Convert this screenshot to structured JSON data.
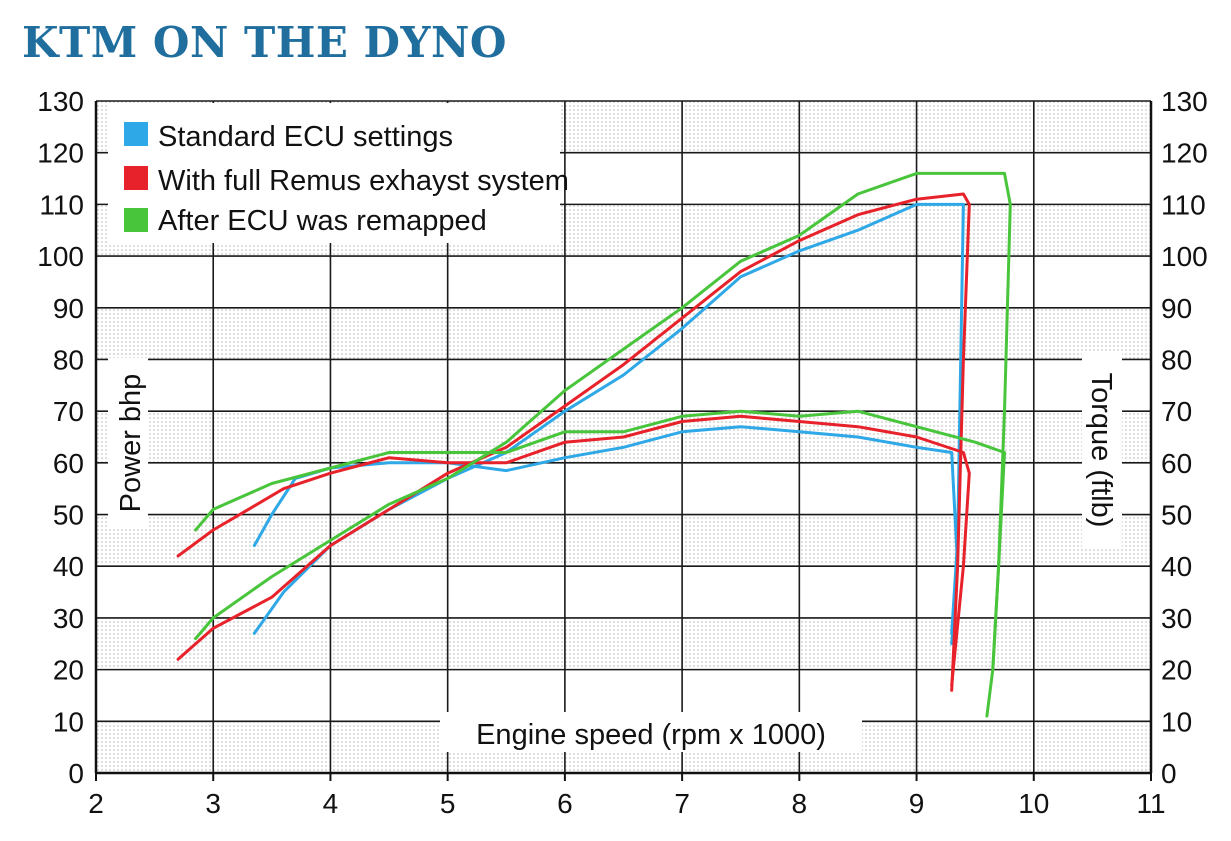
{
  "chart_data": {
    "type": "line",
    "title": "KTM ON THE DYNO",
    "xlabel": "Engine speed (rpm x 1000)",
    "ylabel": "Power bhp",
    "y2label": "Torque (ftlb)",
    "xlim": [
      2,
      11
    ],
    "ylim": [
      0,
      130
    ],
    "y2lim": [
      0,
      130
    ],
    "x_ticks": [
      2,
      3,
      4,
      5,
      6,
      7,
      8,
      9,
      10,
      11
    ],
    "y_ticks": [
      0,
      10,
      20,
      30,
      40,
      50,
      60,
      70,
      80,
      90,
      100,
      110,
      120,
      130
    ],
    "grid": true,
    "legend_position": "top-left",
    "series": [
      {
        "name": "Standard ECU settings",
        "color": "#2ea8e6",
        "power": [
          [
            3.35,
            27
          ],
          [
            3.6,
            35
          ],
          [
            4.0,
            44
          ],
          [
            4.5,
            51
          ],
          [
            5.0,
            57
          ],
          [
            5.5,
            62
          ],
          [
            6.0,
            70
          ],
          [
            6.5,
            77
          ],
          [
            7.0,
            86
          ],
          [
            7.5,
            96
          ],
          [
            8.0,
            101
          ],
          [
            8.5,
            105
          ],
          [
            9.0,
            110
          ],
          [
            9.4,
            110
          ],
          [
            9.35,
            45
          ],
          [
            9.3,
            27
          ]
        ],
        "torque": [
          [
            3.35,
            44
          ],
          [
            3.5,
            50
          ],
          [
            3.7,
            57
          ],
          [
            4.0,
            59
          ],
          [
            4.5,
            60
          ],
          [
            5.0,
            60
          ],
          [
            5.5,
            58.5
          ],
          [
            6.0,
            61
          ],
          [
            6.5,
            63
          ],
          [
            7.0,
            66
          ],
          [
            7.5,
            67
          ],
          [
            8.0,
            66
          ],
          [
            8.5,
            65
          ],
          [
            9.0,
            63
          ],
          [
            9.3,
            62
          ],
          [
            9.35,
            40
          ],
          [
            9.3,
            25
          ]
        ]
      },
      {
        "name": "With full Remus exhayst system",
        "color": "#e8222a",
        "power": [
          [
            2.7,
            22
          ],
          [
            3.0,
            28
          ],
          [
            3.5,
            34
          ],
          [
            4.0,
            44
          ],
          [
            4.5,
            51
          ],
          [
            5.0,
            58
          ],
          [
            5.5,
            63
          ],
          [
            6.0,
            71
          ],
          [
            6.5,
            79
          ],
          [
            7.0,
            88
          ],
          [
            7.5,
            97
          ],
          [
            8.0,
            103
          ],
          [
            8.5,
            108
          ],
          [
            9.0,
            111
          ],
          [
            9.4,
            112
          ],
          [
            9.45,
            110
          ],
          [
            9.4,
            80
          ],
          [
            9.35,
            40
          ],
          [
            9.3,
            16
          ]
        ],
        "torque": [
          [
            2.7,
            42
          ],
          [
            3.0,
            47
          ],
          [
            3.3,
            51
          ],
          [
            3.6,
            55
          ],
          [
            4.0,
            58
          ],
          [
            4.5,
            61
          ],
          [
            5.0,
            60
          ],
          [
            5.5,
            60
          ],
          [
            6.0,
            64
          ],
          [
            6.5,
            65
          ],
          [
            7.0,
            68
          ],
          [
            7.5,
            69
          ],
          [
            8.0,
            68
          ],
          [
            8.5,
            67
          ],
          [
            9.0,
            65
          ],
          [
            9.4,
            62
          ],
          [
            9.45,
            58
          ],
          [
            9.4,
            40
          ],
          [
            9.3,
            17
          ]
        ]
      },
      {
        "name": "After ECU was remapped",
        "color": "#49c53c",
        "power": [
          [
            2.85,
            26
          ],
          [
            3.0,
            30
          ],
          [
            3.5,
            38
          ],
          [
            4.0,
            45
          ],
          [
            4.5,
            52
          ],
          [
            5.0,
            57
          ],
          [
            5.5,
            64
          ],
          [
            6.0,
            74
          ],
          [
            6.5,
            82
          ],
          [
            7.0,
            90
          ],
          [
            7.5,
            99
          ],
          [
            8.0,
            104
          ],
          [
            8.5,
            112
          ],
          [
            9.0,
            116
          ],
          [
            9.5,
            116
          ],
          [
            9.75,
            116
          ],
          [
            9.8,
            110
          ],
          [
            9.75,
            70
          ],
          [
            9.7,
            40
          ],
          [
            9.65,
            20
          ]
        ],
        "torque": [
          [
            2.85,
            47
          ],
          [
            3.0,
            51
          ],
          [
            3.5,
            56
          ],
          [
            4.0,
            59
          ],
          [
            4.5,
            62
          ],
          [
            5.0,
            62
          ],
          [
            5.5,
            62
          ],
          [
            6.0,
            66
          ],
          [
            6.5,
            66
          ],
          [
            7.0,
            69
          ],
          [
            7.5,
            70
          ],
          [
            8.0,
            69
          ],
          [
            8.5,
            70
          ],
          [
            9.0,
            67
          ],
          [
            9.5,
            64
          ],
          [
            9.75,
            62
          ],
          [
            9.7,
            40
          ],
          [
            9.65,
            20
          ],
          [
            9.6,
            11
          ]
        ]
      }
    ]
  }
}
